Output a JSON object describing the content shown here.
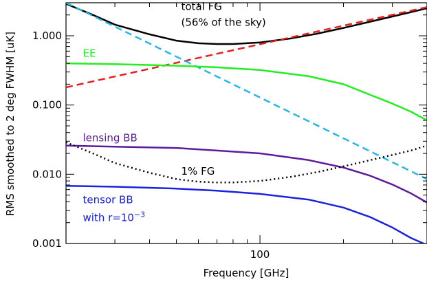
{
  "chart_data": {
    "type": "line",
    "xlabel": "Frequency [GHz]",
    "ylabel": "RMS smoothed to 2 deg FWHM [uK]",
    "xscale": "log",
    "yscale": "log",
    "xlim": [
      20,
      400
    ],
    "ylim": [
      0.001,
      3.0
    ],
    "x_ticks": [
      {
        "value": 100,
        "label": "100"
      }
    ],
    "y_ticks": [
      {
        "value": 0.001,
        "label": "0.001"
      },
      {
        "value": 0.01,
        "label": "0.010"
      },
      {
        "value": 0.1,
        "label": "0.100"
      },
      {
        "value": 1.0,
        "label": "1.000"
      }
    ],
    "grid": false,
    "series": [
      {
        "key": "total_fg",
        "color": "#000000",
        "dash": "solid",
        "width": 2.5,
        "x": [
          20,
          25,
          30,
          40,
          50,
          60,
          70,
          80,
          100,
          130,
          160,
          200,
          250,
          300,
          350,
          400
        ],
        "y": [
          2.9,
          2.0,
          1.45,
          1.05,
          0.85,
          0.78,
          0.76,
          0.76,
          0.8,
          0.92,
          1.07,
          1.3,
          1.6,
          1.9,
          2.2,
          2.5
        ]
      },
      {
        "key": "sync",
        "color": "#e8201b",
        "dash": "10,6",
        "width": 2.5,
        "x": [
          20,
          400
        ],
        "y": [
          0.18,
          2.6
        ]
      },
      {
        "key": "dust",
        "color": "#24b8e8",
        "dash": "10,6",
        "width": 2.5,
        "x": [
          20,
          400
        ],
        "y": [
          3.0,
          0.0085
        ]
      },
      {
        "key": "ee",
        "color": "#22ee22",
        "dash": "solid",
        "width": 2.5,
        "x": [
          20,
          30,
          50,
          70,
          100,
          150,
          200,
          250,
          300,
          350,
          400
        ],
        "y": [
          0.4,
          0.39,
          0.37,
          0.35,
          0.32,
          0.26,
          0.2,
          0.14,
          0.105,
          0.08,
          0.06
        ]
      },
      {
        "key": "lensing_bb",
        "color": "#5d1a9e",
        "dash": "solid",
        "width": 2.5,
        "x": [
          20,
          30,
          50,
          70,
          100,
          150,
          200,
          250,
          300,
          350,
          400
        ],
        "y": [
          0.026,
          0.025,
          0.024,
          0.022,
          0.02,
          0.016,
          0.0125,
          0.0095,
          0.0071,
          0.0053,
          0.0039
        ]
      },
      {
        "key": "one_pct_fg",
        "color": "#000000",
        "dash": "2,4",
        "width": 2.5,
        "x": [
          20,
          25,
          30,
          40,
          50,
          60,
          70,
          80,
          100,
          130,
          160,
          200,
          250,
          300,
          350,
          400
        ],
        "y": [
          0.029,
          0.02,
          0.0145,
          0.0105,
          0.0085,
          0.0078,
          0.0076,
          0.0076,
          0.008,
          0.0092,
          0.0107,
          0.013,
          0.016,
          0.019,
          0.022,
          0.026
        ]
      },
      {
        "key": "tensor_bb",
        "color": "#1a22e0",
        "dash": "solid",
        "width": 2.5,
        "x": [
          20,
          30,
          50,
          70,
          100,
          150,
          200,
          250,
          300,
          350,
          400
        ],
        "y": [
          0.0068,
          0.0066,
          0.0062,
          0.0058,
          0.0052,
          0.0043,
          0.0033,
          0.0024,
          0.0017,
          0.0012,
          0.00095
        ]
      }
    ],
    "annotations": [
      {
        "key": "total_fg_1",
        "text": "total FG",
        "color": "#000000",
        "x": 52,
        "y": 2.35
      },
      {
        "key": "total_fg_2",
        "text": "(56% of the sky)",
        "color": "#000000",
        "x": 52,
        "y": 1.4
      },
      {
        "key": "ee",
        "text": "EE",
        "color": "#22ee22",
        "x": 23,
        "y": 0.5
      },
      {
        "key": "lensing",
        "text": "lensing BB",
        "color": "#5d1a9e",
        "x": 23,
        "y": 0.03
      },
      {
        "key": "one_pct",
        "text": "1% FG",
        "color": "#000000",
        "x": 52,
        "y": 0.0098
      },
      {
        "key": "tensor_1",
        "text": "tensor BB",
        "color": "#1a22e0",
        "x": 23,
        "y": 0.0038
      },
      {
        "key": "tensor_2",
        "text": "with r=10",
        "sup": "−3",
        "color": "#1a22e0",
        "x": 23,
        "y": 0.0021
      }
    ]
  }
}
